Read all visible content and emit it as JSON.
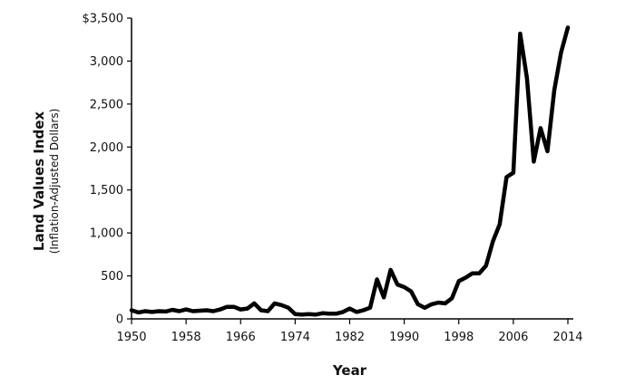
{
  "chart_data": {
    "type": "line",
    "xlabel": "Year",
    "ylabel": "Land Values Index",
    "ylabel_sub": "(Inflation-Adjusted Dollars)",
    "xlim": [
      1950,
      2014
    ],
    "ylim": [
      0,
      3500
    ],
    "x_ticks": [
      1950,
      1958,
      1966,
      1974,
      1982,
      1990,
      1998,
      2006,
      2014
    ],
    "y_ticks": [
      0,
      500,
      1000,
      1500,
      2000,
      2500,
      3000,
      3500
    ],
    "y_tick_labels": [
      "0",
      "500",
      "1,000",
      "1,500",
      "2,000",
      "2,500",
      "3,000",
      "$3,500"
    ],
    "grid": false,
    "line_color": "#000000",
    "series": [
      {
        "x": [
          1950,
          1951,
          1952,
          1953,
          1954,
          1955,
          1956,
          1957,
          1958,
          1959,
          1960,
          1961,
          1962,
          1963,
          1964,
          1965,
          1966,
          1967,
          1968,
          1969,
          1970,
          1971,
          1972,
          1973,
          1974,
          1975,
          1976,
          1977,
          1978,
          1979,
          1980,
          1981,
          1982,
          1983,
          1984,
          1985,
          1986,
          1987,
          1988,
          1989,
          1990,
          1991,
          1992,
          1993,
          1994,
          1995,
          1996,
          1997,
          1998,
          1999,
          2000,
          2001,
          2002,
          2003,
          2004,
          2005,
          2006,
          2007,
          2008,
          2009,
          2010,
          2011,
          2012,
          2013,
          2014
        ],
        "values": [
          100,
          75,
          90,
          80,
          90,
          85,
          105,
          90,
          110,
          90,
          95,
          100,
          90,
          110,
          140,
          140,
          110,
          120,
          180,
          100,
          90,
          180,
          160,
          130,
          55,
          50,
          55,
          50,
          65,
          60,
          60,
          80,
          120,
          80,
          100,
          130,
          460,
          250,
          570,
          400,
          370,
          320,
          170,
          130,
          170,
          190,
          180,
          240,
          440,
          480,
          530,
          530,
          620,
          900,
          1100,
          1650,
          1700,
          3320,
          2800,
          1830,
          2220,
          1950,
          2660,
          3100,
          3390
        ]
      }
    ]
  }
}
